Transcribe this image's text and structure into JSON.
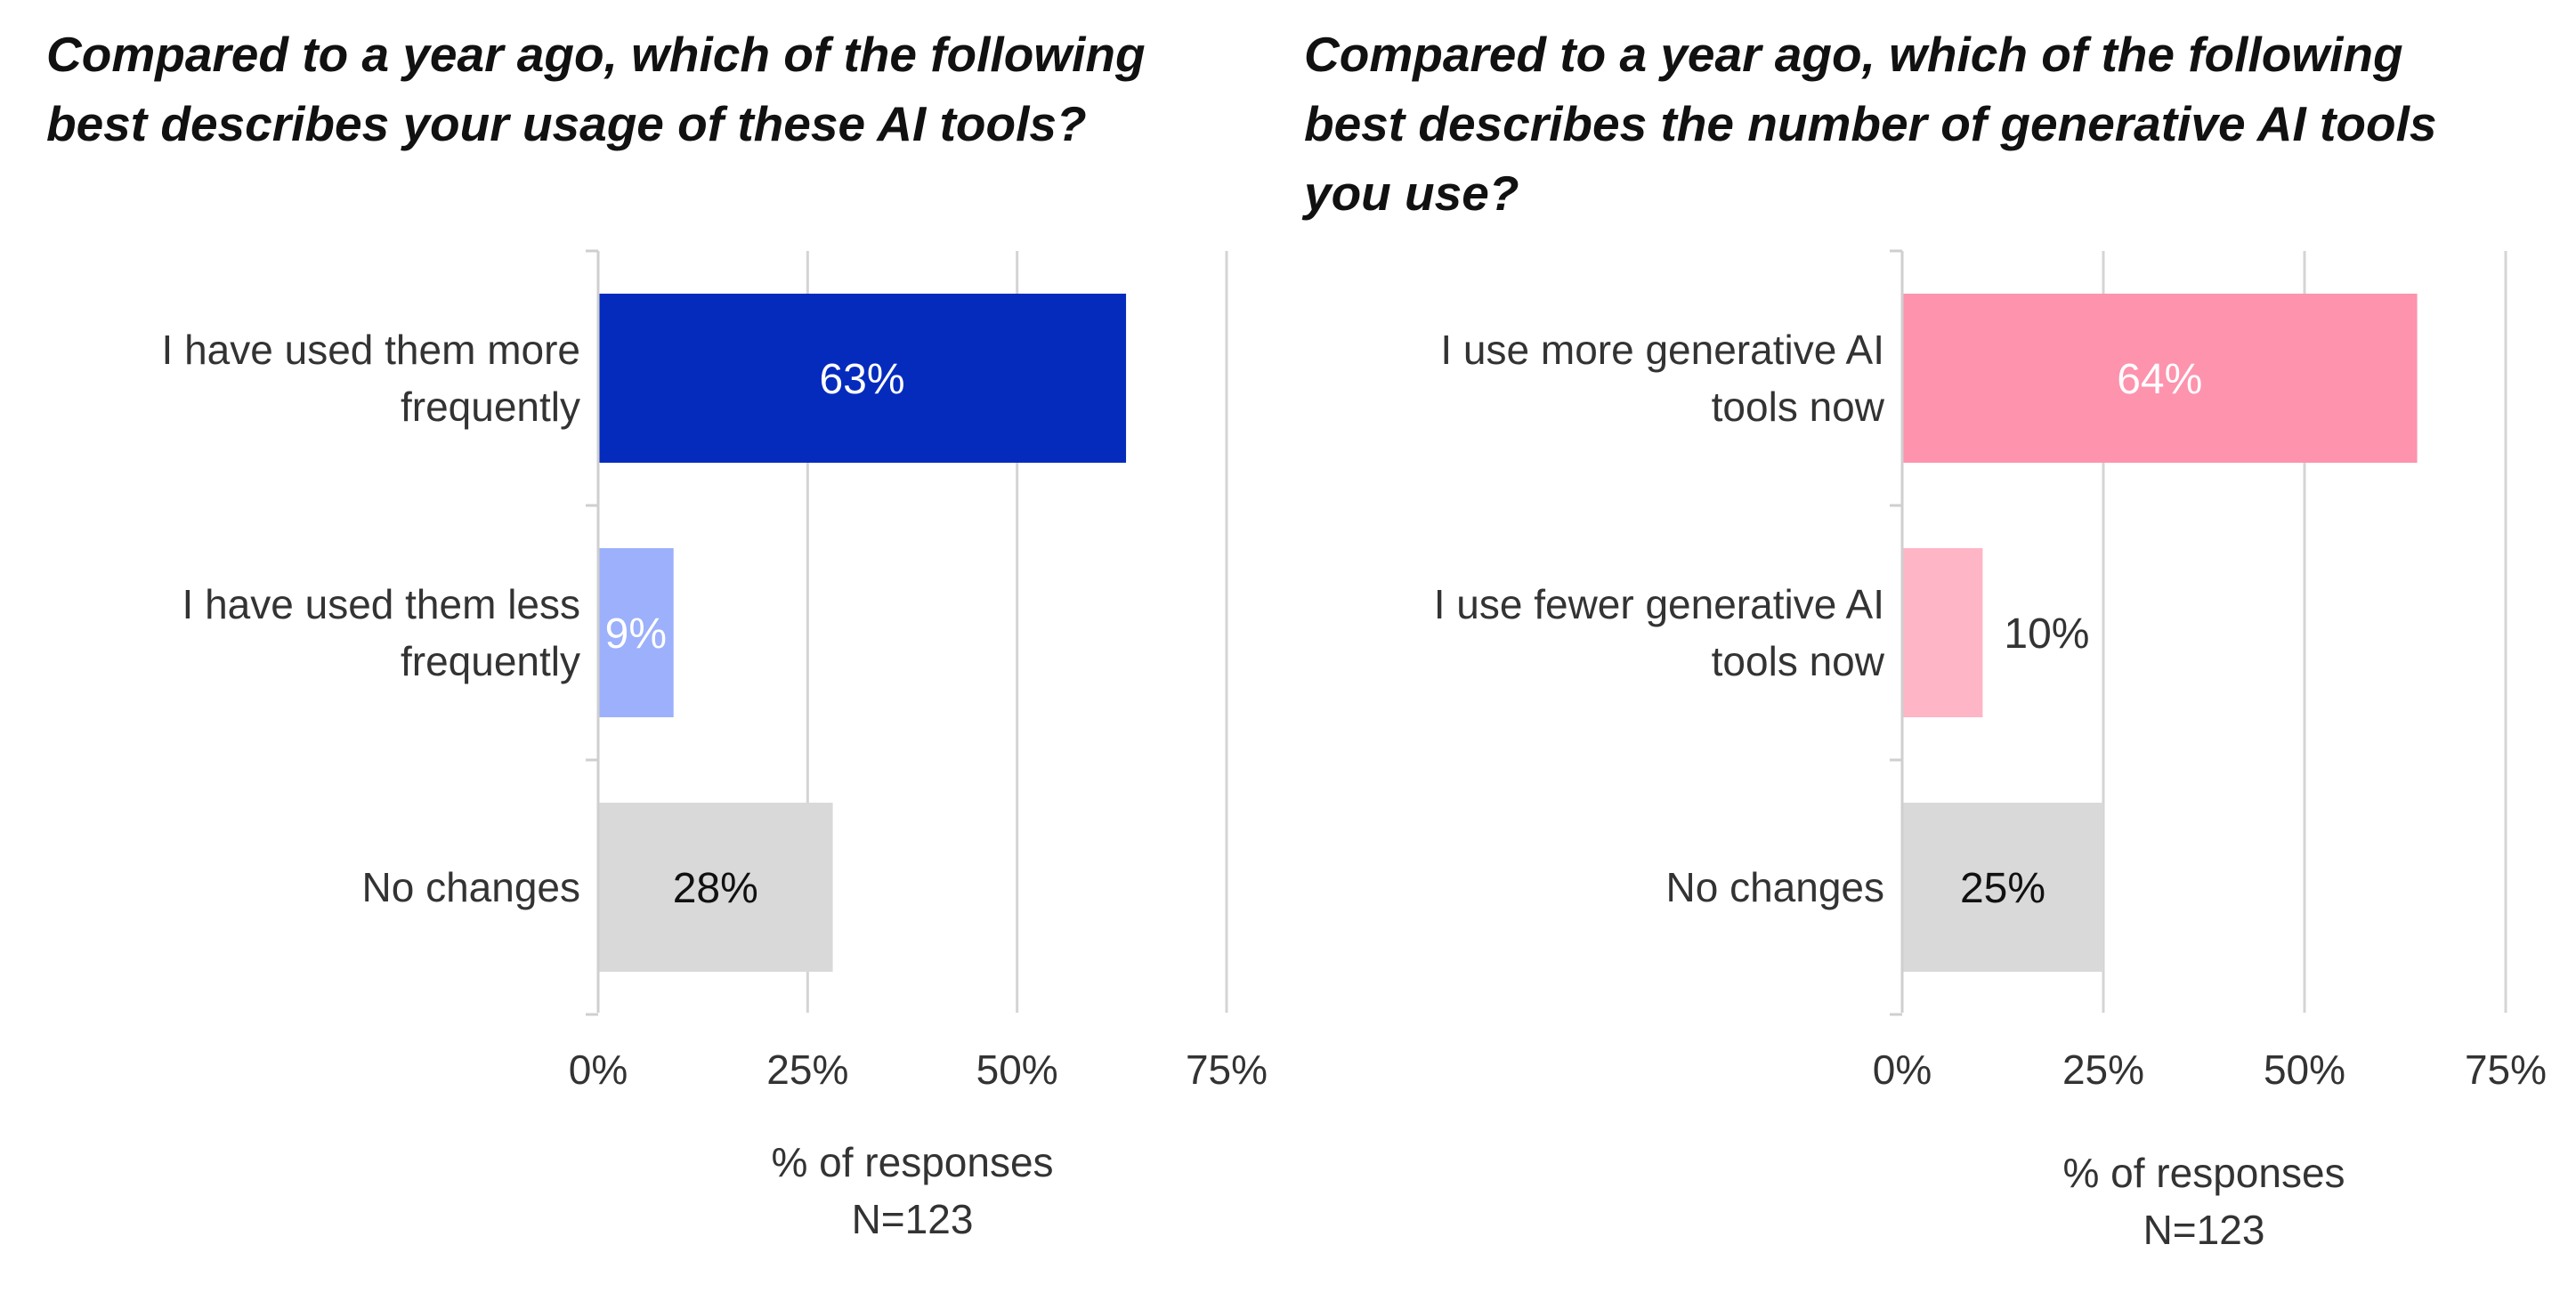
{
  "chart_data": [
    {
      "type": "bar",
      "orientation": "horizontal",
      "title_parts": [
        {
          "text": "Compared to a year ago, which of the following best describes your ",
          "bold": false
        },
        {
          "text": "usage of these AI tools",
          "bold": true
        },
        {
          "text": "?",
          "bold": false
        }
      ],
      "categories": [
        [
          "I have used them more",
          "frequently"
        ],
        [
          "I have used them less",
          "frequently"
        ],
        [
          "No changes"
        ]
      ],
      "values": [
        63,
        9,
        28
      ],
      "value_labels": [
        "63%",
        "9%",
        "28%"
      ],
      "colors": [
        "#052bbd",
        "#9cb0fb",
        "#d9d9d9"
      ],
      "value_label_colors": [
        "#ffffff",
        "#ffffff",
        "#111111"
      ],
      "value_label_inside": [
        true,
        true,
        true
      ],
      "xlim": [
        0,
        75
      ],
      "xticks": [
        0,
        25,
        50,
        75
      ],
      "xtick_labels": [
        "0%",
        "25%",
        "50%",
        "75%"
      ],
      "xlabel": [
        "% of responses",
        "N=123"
      ],
      "grid": true
    },
    {
      "type": "bar",
      "orientation": "horizontal",
      "title_parts": [
        {
          "text": "Compared to a year ago, which of the following best describes ",
          "bold": false
        },
        {
          "text": "the number of generative AI tools",
          "bold": true
        },
        {
          "text": " you use?",
          "bold": false
        }
      ],
      "categories": [
        [
          "I use more generative AI",
          "tools now"
        ],
        [
          "I use fewer generative AI",
          "tools now"
        ],
        [
          "No changes"
        ]
      ],
      "values": [
        64,
        10,
        25
      ],
      "value_labels": [
        "64%",
        "10%",
        "25%"
      ],
      "colors": [
        "#fd93ad",
        "#feb5c6",
        "#d9d9d9"
      ],
      "value_label_colors": [
        "#ffffff",
        "#333333",
        "#111111"
      ],
      "value_label_inside": [
        true,
        false,
        true
      ],
      "xlim": [
        0,
        75
      ],
      "xticks": [
        0,
        25,
        50,
        75
      ],
      "xtick_labels": [
        "0%",
        "25%",
        "50%",
        "75%"
      ],
      "xlabel": [
        "% of responses",
        "N=123"
      ],
      "grid": true
    }
  ]
}
